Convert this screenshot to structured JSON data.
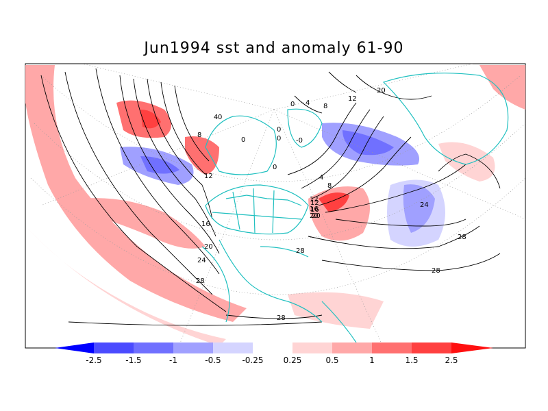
{
  "title": "Jun1994 sst and anomaly 61-90",
  "colors": {
    "coast": "#20c0c0",
    "contour": "#000000",
    "grid": "#9a9a9a",
    "neg": [
      "#0000ff",
      "#4b4bff",
      "#7070ff",
      "#a0a0ff",
      "#d4d4ff"
    ],
    "neutral": "#ffffff",
    "pos": [
      "#ffd4d4",
      "#ffa8a8",
      "#ff7070",
      "#ff4040",
      "#ff1010"
    ]
  },
  "colorbar": {
    "labels": [
      "-2.5",
      "-1.5",
      "-1",
      "-0.5",
      "-0.25",
      "0.25",
      "0.5",
      "1",
      "1.5",
      "2.5"
    ]
  },
  "contour_labels": [
    "0",
    "4",
    "8",
    "12",
    "16",
    "20",
    "24",
    "28",
    "28",
    "28",
    "28",
    "28",
    "24",
    "20",
    "16",
    "12",
    "8",
    "4",
    "0",
    "0",
    "4",
    "8",
    "12",
    "20",
    "-0",
    "0",
    "0",
    "0",
    "12",
    "16",
    "20"
  ]
}
